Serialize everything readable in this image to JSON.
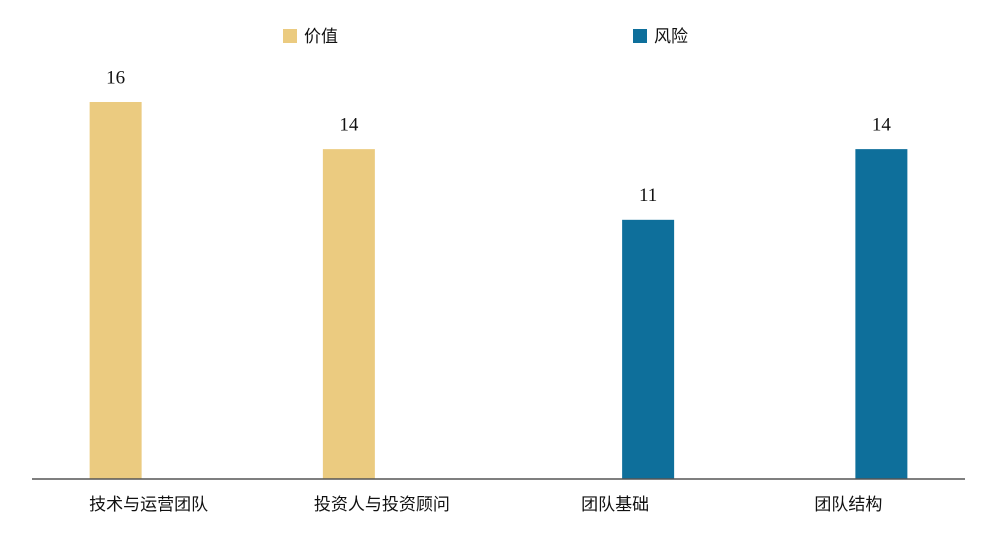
{
  "chart_data": {
    "type": "bar",
    "categories": [
      "技术与运营团队",
      "投资人与投资顾问",
      "团队基础",
      "团队结构"
    ],
    "series": [
      {
        "name": "价值",
        "color": "#ebcb80",
        "values": [
          16,
          14,
          null,
          null
        ]
      },
      {
        "name": "风险",
        "color": "#0e6f9b",
        "values": [
          null,
          null,
          11,
          14
        ]
      }
    ],
    "ylim": [
      0,
      16
    ],
    "grid": false,
    "legend": "top"
  }
}
